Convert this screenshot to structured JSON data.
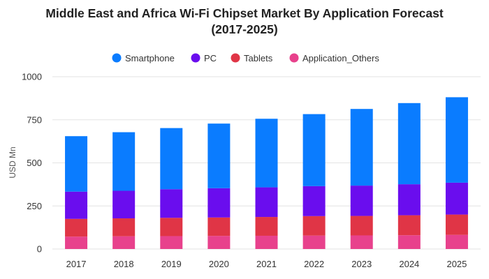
{
  "chart_data": {
    "type": "bar",
    "stacked": true,
    "title_line1": "Middle East and Africa Wi-Fi Chipset Market By Application Forecast",
    "title_line2": "(2017-2025)",
    "xlabel": "",
    "ylabel": "USD Mn",
    "ylim": [
      0,
      1000
    ],
    "yticks": [
      0,
      250,
      500,
      750,
      1000
    ],
    "grid": true,
    "legend_position": "top-center",
    "categories": [
      "2017",
      "2018",
      "2019",
      "2020",
      "2021",
      "2022",
      "2023",
      "2024",
      "2025"
    ],
    "series": [
      {
        "name": "Application_Others",
        "color": "#e8418c",
        "values": [
          72,
          74,
          75,
          76,
          77,
          78,
          79,
          80,
          82
        ]
      },
      {
        "name": "Tablets",
        "color": "#e03546",
        "values": [
          103,
          104,
          106,
          107,
          109,
          113,
          113,
          116,
          118
        ]
      },
      {
        "name": "PC",
        "color": "#6a0dee",
        "values": [
          158,
          160,
          166,
          170,
          172,
          174,
          176,
          180,
          185
        ]
      },
      {
        "name": "Smartphone",
        "color": "#0a7cff",
        "values": [
          322,
          340,
          355,
          375,
          398,
          418,
          445,
          471,
          496
        ]
      }
    ],
    "legend_order": [
      "Smartphone",
      "PC",
      "Tablets",
      "Application_Others"
    ]
  }
}
